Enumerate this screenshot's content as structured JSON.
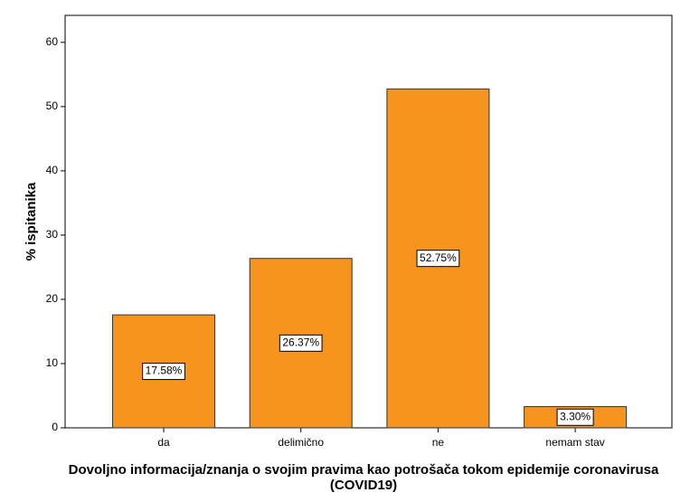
{
  "chart_data": {
    "type": "bar",
    "x_label": "Dovoljno informacija/znanja o svojim pravima kao potrošača tokom epidemije coronavirusa (COVID19)",
    "y_label": "% ispitanika",
    "categories": [
      "da",
      "delimično",
      "ne",
      "nemam stav"
    ],
    "values": [
      17.58,
      26.37,
      52.75,
      3.3
    ],
    "value_labels": [
      "17.58%",
      "26.37%",
      "52.75%",
      "3.30%"
    ],
    "color": "#f7941d",
    "ylim": [
      0,
      64.2
    ],
    "yticks": [
      0,
      10,
      20,
      30,
      40,
      50,
      60
    ]
  }
}
